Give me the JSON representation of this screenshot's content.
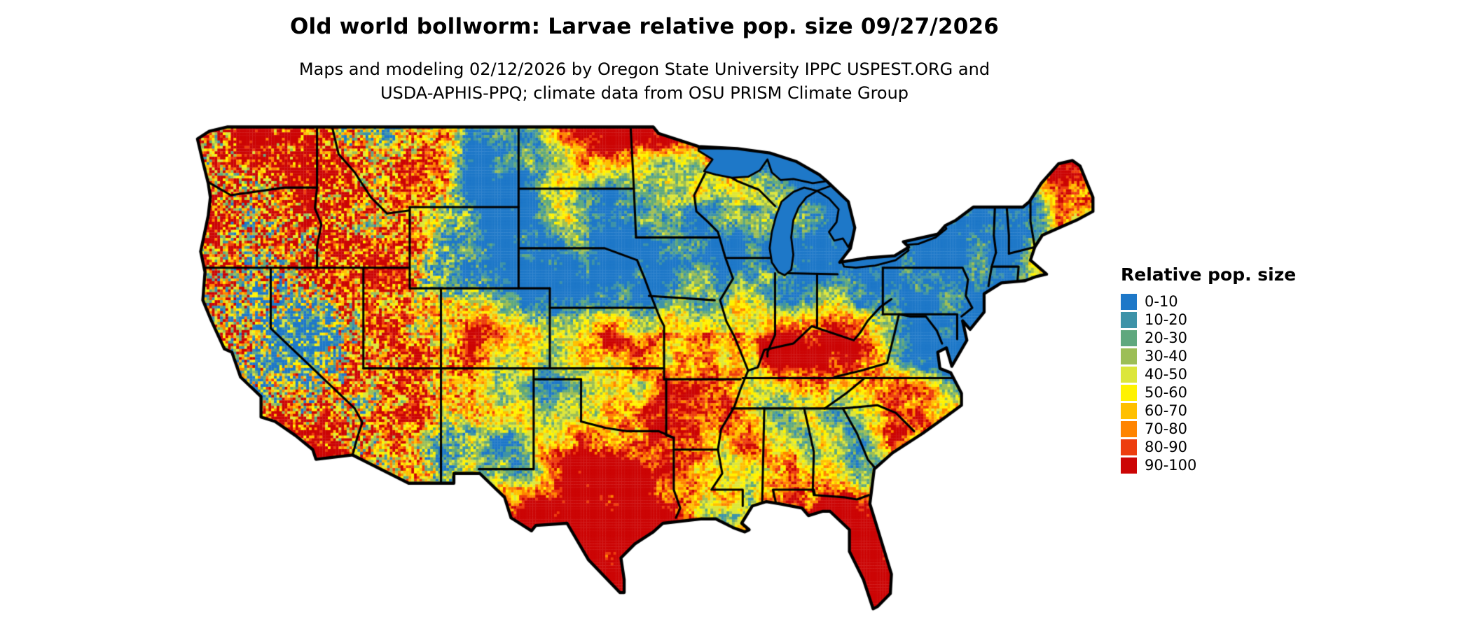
{
  "header": {
    "title": "Old world bollworm: Larvae relative pop. size 09/27/2026",
    "subtitle_line1": "Maps and modeling 02/12/2026 by Oregon State University IPPC USPEST.ORG and",
    "subtitle_line2": "USDA-APHIS-PPQ; climate data from OSU PRISM Climate Group"
  },
  "legend": {
    "title": "Relative pop. size",
    "items": [
      {
        "label": "0-10",
        "color": "#1E78C8"
      },
      {
        "label": "10-20",
        "color": "#3E93A8"
      },
      {
        "label": "20-30",
        "color": "#5FA87E"
      },
      {
        "label": "30-40",
        "color": "#9CBE56"
      },
      {
        "label": "40-50",
        "color": "#DCE63A"
      },
      {
        "label": "50-60",
        "color": "#FFF200"
      },
      {
        "label": "60-70",
        "color": "#FFC000"
      },
      {
        "label": "70-80",
        "color": "#FF8400"
      },
      {
        "label": "80-90",
        "color": "#ED3D0E"
      },
      {
        "label": "90-100",
        "color": "#CC0505"
      }
    ]
  },
  "map": {
    "border_color": "#000000",
    "background_color": "#FFFFFF"
  }
}
